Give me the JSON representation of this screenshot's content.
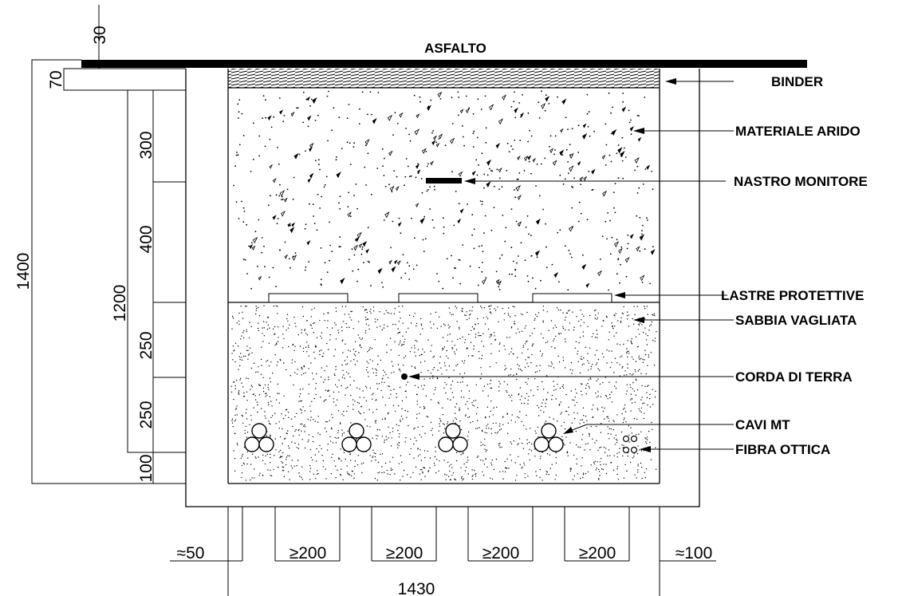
{
  "labels": {
    "asfalto": "ASFALTO",
    "binder": "BINDER",
    "materiale_arido": "MATERIALE ARIDO",
    "nastro_monitore": "NASTRO MONITORE",
    "lastre_protettive": "LASTRE PROTETTIVE",
    "sabbia_vagliata": "SABBIA VAGLIATA",
    "corda_di_terra": "CORDA DI TERRA",
    "cavi_mt": "CAVI MT",
    "fibra_ottica": "FIBRA OTTICA"
  },
  "dimensions": {
    "top_30": "30",
    "d70": "70",
    "d300": "300",
    "d400": "400",
    "d1400": "1400",
    "d1200": "1200",
    "d250a": "250",
    "d250b": "250",
    "d100": "100",
    "left_50": "≈50",
    "gap1": "≥200",
    "gap2": "≥200",
    "gap3": "≥200",
    "gap4": "≥200",
    "right_100": "≈100",
    "width_1430": "1430"
  }
}
